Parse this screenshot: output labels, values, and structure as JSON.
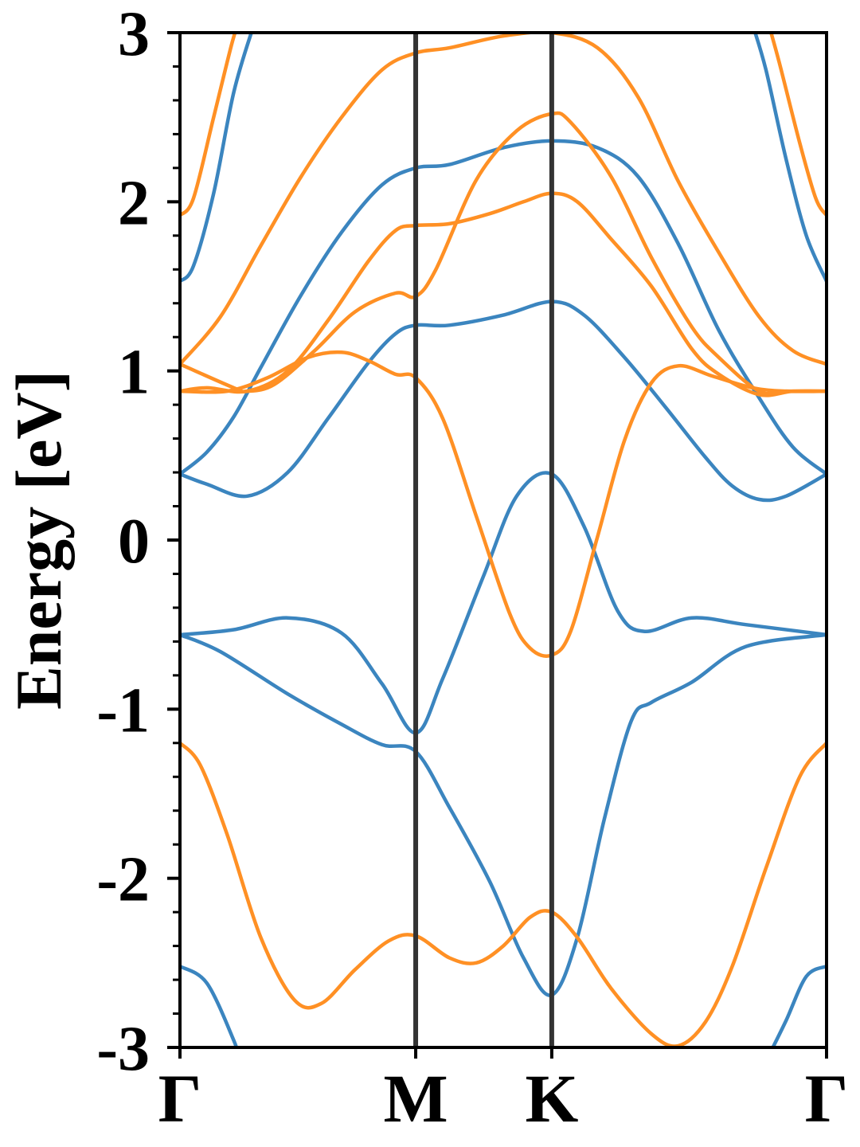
{
  "chart_data": {
    "type": "line",
    "title": "",
    "xlabel": "",
    "ylabel": "Energy [eV]",
    "ylim": [
      -3,
      3
    ],
    "yticks": [
      3,
      2,
      1,
      0,
      -1,
      -2,
      -3
    ],
    "ytick_labels": [
      "3",
      "2",
      "1",
      "0",
      "-1",
      "-2",
      "-3"
    ],
    "y_minor_step": 0.2,
    "x_range": [
      0,
      4.8
    ],
    "kpoints": [
      {
        "label": "Γ",
        "x": 0
      },
      {
        "label": "M",
        "x": 1.75
      },
      {
        "label": "K",
        "x": 2.76
      },
      {
        "label": "Γ",
        "x": 4.8
      }
    ],
    "colors": {
      "blue": "#3b85bf",
      "orange": "#ff9024",
      "vline": "#333333"
    },
    "series": [
      {
        "color": "blue",
        "points": [
          [
            0,
            -2.52
          ],
          [
            0.2,
            -2.62
          ],
          [
            0.4,
            -2.96
          ],
          [
            0.43,
            -3.05
          ]
        ]
      },
      {
        "color": "blue",
        "points": [
          [
            0,
            -0.56
          ],
          [
            0.3,
            -0.66
          ],
          [
            0.8,
            -0.91
          ],
          [
            1.2,
            -1.09
          ],
          [
            1.5,
            -1.21
          ],
          [
            1.75,
            -1.25
          ],
          [
            2.0,
            -1.58
          ],
          [
            2.3,
            -2.02
          ],
          [
            2.55,
            -2.47
          ],
          [
            2.76,
            -2.69
          ],
          [
            2.95,
            -2.35
          ],
          [
            3.15,
            -1.65
          ],
          [
            3.35,
            -1.07
          ],
          [
            3.5,
            -0.96
          ],
          [
            3.8,
            -0.84
          ],
          [
            4.2,
            -0.63
          ],
          [
            4.8,
            -0.56
          ]
        ]
      },
      {
        "color": "blue",
        "points": [
          [
            0,
            -0.56
          ],
          [
            0.4,
            -0.53
          ],
          [
            0.8,
            -0.46
          ],
          [
            1.2,
            -0.55
          ],
          [
            1.5,
            -0.85
          ],
          [
            1.75,
            -1.14
          ],
          [
            1.95,
            -0.82
          ],
          [
            2.25,
            -0.22
          ],
          [
            2.5,
            0.26
          ],
          [
            2.76,
            0.39
          ],
          [
            3.0,
            0.08
          ],
          [
            3.25,
            -0.42
          ],
          [
            3.45,
            -0.54
          ],
          [
            3.8,
            -0.46
          ],
          [
            4.2,
            -0.5
          ],
          [
            4.8,
            -0.56
          ]
        ]
      },
      {
        "color": "blue",
        "points": [
          [
            0,
            0.39
          ],
          [
            0.2,
            0.33
          ],
          [
            0.5,
            0.26
          ],
          [
            0.8,
            0.4
          ],
          [
            1.1,
            0.72
          ],
          [
            1.4,
            1.05
          ],
          [
            1.6,
            1.22
          ],
          [
            1.75,
            1.27
          ],
          [
            2.0,
            1.27
          ],
          [
            2.4,
            1.33
          ],
          [
            2.76,
            1.41
          ],
          [
            3.0,
            1.33
          ],
          [
            3.3,
            1.08
          ],
          [
            3.6,
            0.79
          ],
          [
            3.9,
            0.49
          ],
          [
            4.1,
            0.32
          ],
          [
            4.3,
            0.24
          ],
          [
            4.5,
            0.26
          ],
          [
            4.8,
            0.39
          ]
        ]
      },
      {
        "color": "blue",
        "points": [
          [
            0,
            0.39
          ],
          [
            0.2,
            0.52
          ],
          [
            0.4,
            0.73
          ],
          [
            0.6,
            1.02
          ],
          [
            0.9,
            1.45
          ],
          [
            1.2,
            1.82
          ],
          [
            1.5,
            2.1
          ],
          [
            1.75,
            2.2
          ],
          [
            2.0,
            2.22
          ],
          [
            2.4,
            2.32
          ],
          [
            2.76,
            2.36
          ],
          [
            3.1,
            2.32
          ],
          [
            3.4,
            2.15
          ],
          [
            3.7,
            1.75
          ],
          [
            4.0,
            1.24
          ],
          [
            4.3,
            0.84
          ],
          [
            4.55,
            0.55
          ],
          [
            4.8,
            0.39
          ]
        ]
      },
      {
        "color": "blue",
        "points": [
          [
            0,
            1.53
          ],
          [
            0.1,
            1.62
          ],
          [
            0.25,
            2.05
          ],
          [
            0.4,
            2.65
          ],
          [
            0.55,
            3.05
          ]
        ]
      },
      {
        "color": "blue",
        "points": [
          [
            4.25,
            3.05
          ],
          [
            4.35,
            2.78
          ],
          [
            4.5,
            2.25
          ],
          [
            4.65,
            1.8
          ],
          [
            4.8,
            1.53
          ]
        ]
      },
      {
        "color": "blue",
        "points": [
          [
            4.37,
            -3.05
          ],
          [
            4.5,
            -2.84
          ],
          [
            4.65,
            -2.58
          ],
          [
            4.8,
            -2.52
          ]
        ]
      },
      {
        "color": "orange",
        "points": [
          [
            0,
            -1.2
          ],
          [
            0.15,
            -1.33
          ],
          [
            0.35,
            -1.74
          ],
          [
            0.6,
            -2.35
          ],
          [
            0.85,
            -2.72
          ],
          [
            1.05,
            -2.74
          ],
          [
            1.3,
            -2.54
          ],
          [
            1.55,
            -2.37
          ],
          [
            1.75,
            -2.34
          ],
          [
            2.0,
            -2.47
          ],
          [
            2.2,
            -2.5
          ],
          [
            2.4,
            -2.4
          ],
          [
            2.6,
            -2.23
          ],
          [
            2.76,
            -2.2
          ],
          [
            2.95,
            -2.35
          ],
          [
            3.2,
            -2.65
          ],
          [
            3.5,
            -2.92
          ],
          [
            3.7,
            -2.99
          ],
          [
            3.9,
            -2.85
          ],
          [
            4.1,
            -2.52
          ],
          [
            4.35,
            -1.94
          ],
          [
            4.6,
            -1.4
          ],
          [
            4.8,
            -1.2
          ]
        ]
      },
      {
        "color": "orange",
        "points": [
          [
            0,
            0.88
          ],
          [
            0.35,
            0.88
          ],
          [
            0.65,
            0.96
          ],
          [
            0.95,
            1.08
          ],
          [
            1.2,
            1.11
          ],
          [
            1.4,
            1.06
          ],
          [
            1.6,
            0.98
          ],
          [
            1.75,
            0.96
          ],
          [
            1.95,
            0.72
          ],
          [
            2.2,
            0.14
          ],
          [
            2.45,
            -0.44
          ],
          [
            2.6,
            -0.64
          ],
          [
            2.76,
            -0.68
          ],
          [
            2.9,
            -0.54
          ],
          [
            3.1,
            0.02
          ],
          [
            3.3,
            0.59
          ],
          [
            3.5,
            0.93
          ],
          [
            3.7,
            1.03
          ],
          [
            3.95,
            0.97
          ],
          [
            4.25,
            0.9
          ],
          [
            4.5,
            0.88
          ],
          [
            4.8,
            0.88
          ]
        ]
      },
      {
        "color": "orange",
        "points": [
          [
            0,
            1.04
          ],
          [
            0.4,
            0.9
          ],
          [
            0.5,
            0.88
          ],
          [
            0.7,
            0.92
          ],
          [
            1.0,
            1.12
          ],
          [
            1.3,
            1.35
          ],
          [
            1.6,
            1.46
          ],
          [
            1.75,
            1.44
          ],
          [
            1.9,
            1.6
          ],
          [
            2.2,
            2.13
          ],
          [
            2.5,
            2.42
          ],
          [
            2.76,
            2.52
          ],
          [
            2.9,
            2.47
          ],
          [
            3.2,
            2.15
          ],
          [
            3.5,
            1.67
          ],
          [
            3.8,
            1.26
          ],
          [
            4.0,
            1.08
          ],
          [
            4.3,
            0.88
          ],
          [
            4.5,
            0.88
          ],
          [
            4.8,
            0.88
          ]
        ]
      },
      {
        "color": "orange",
        "points": [
          [
            0,
            0.88
          ],
          [
            0.2,
            0.9
          ],
          [
            0.5,
            0.88
          ],
          [
            0.8,
            1.0
          ],
          [
            1.1,
            1.3
          ],
          [
            1.4,
            1.65
          ],
          [
            1.6,
            1.83
          ],
          [
            1.75,
            1.86
          ],
          [
            2.0,
            1.87
          ],
          [
            2.3,
            1.93
          ],
          [
            2.55,
            2.0
          ],
          [
            2.76,
            2.05
          ],
          [
            2.95,
            2.0
          ],
          [
            3.2,
            1.78
          ],
          [
            3.5,
            1.5
          ],
          [
            3.8,
            1.13
          ],
          [
            4.0,
            0.98
          ],
          [
            4.3,
            0.86
          ],
          [
            4.55,
            0.88
          ],
          [
            4.8,
            0.88
          ]
        ]
      },
      {
        "color": "orange",
        "points": [
          [
            0,
            1.04
          ],
          [
            0.3,
            1.32
          ],
          [
            0.6,
            1.74
          ],
          [
            0.9,
            2.15
          ],
          [
            1.2,
            2.5
          ],
          [
            1.5,
            2.78
          ],
          [
            1.75,
            2.88
          ],
          [
            2.0,
            2.91
          ],
          [
            2.4,
            2.98
          ],
          [
            2.76,
            3.0
          ],
          [
            3.1,
            2.91
          ],
          [
            3.4,
            2.62
          ],
          [
            3.7,
            2.12
          ],
          [
            4.0,
            1.7
          ],
          [
            4.3,
            1.32
          ],
          [
            4.55,
            1.12
          ],
          [
            4.8,
            1.04
          ]
        ]
      },
      {
        "color": "orange",
        "points": [
          [
            0,
            1.92
          ],
          [
            0.1,
            2.02
          ],
          [
            0.25,
            2.5
          ],
          [
            0.38,
            2.92
          ],
          [
            0.43,
            3.05
          ]
        ]
      },
      {
        "color": "orange",
        "points": [
          [
            4.37,
            3.05
          ],
          [
            4.45,
            2.82
          ],
          [
            4.6,
            2.35
          ],
          [
            4.72,
            2.02
          ],
          [
            4.8,
            1.92
          ]
        ]
      }
    ]
  }
}
